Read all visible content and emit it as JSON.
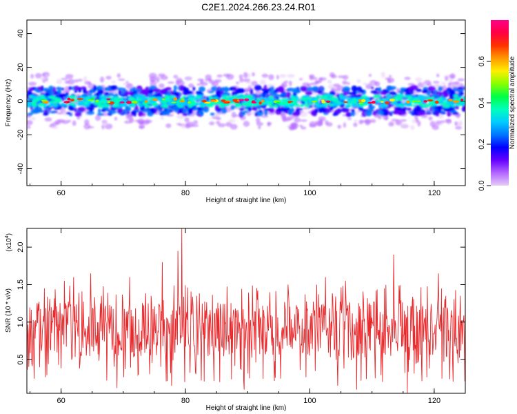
{
  "title": "C2E1.2024.266.23.24.R01",
  "chart_data": [
    {
      "type": "heatmap",
      "xlabel": "Height of straight line (km)",
      "ylabel": "Frequency (Hz)",
      "xlim": [
        54.5,
        125
      ],
      "ylim": [
        -50,
        48
      ],
      "xticks": [
        60,
        80,
        100,
        120
      ],
      "yticks": [
        -40,
        -20,
        0,
        20,
        40
      ],
      "ridge_frequency_hz": 0,
      "ridge_halfwidth_hz": 5,
      "colorbar": {
        "label": "Normalized spectral amplitude",
        "range": [
          0,
          0.8
        ],
        "ticks": [
          0.0,
          0.2,
          0.4,
          0.6
        ],
        "colormap": [
          "#e6ccf7",
          "#b266ff",
          "#6600ff",
          "#0000ff",
          "#0077ff",
          "#00ccff",
          "#00ffbb",
          "#00ff44",
          "#88ff00",
          "#ffee00",
          "#ff9900",
          "#ff3300",
          "#ff0044",
          "#ff0088"
        ]
      }
    },
    {
      "type": "line",
      "xlabel": "Height of straight line (km)",
      "ylabel": "SNR (10 * v/v)",
      "y_multiplier_label": "(x10",
      "y_multiplier_exp": "4",
      "y_multiplier_close": ")",
      "xlim": [
        54.5,
        125
      ],
      "ylim": [
        0.05,
        2.25
      ],
      "xticks": [
        60,
        80,
        100,
        120
      ],
      "yticks": [
        0.5,
        1.0,
        1.5,
        2.0
      ],
      "ytick_labels": [
        "0.5",
        "1.0",
        "1.5",
        "2.0"
      ],
      "color": "#e8282b",
      "anchor_points": [
        {
          "x": 54.5,
          "y": 1.2
        },
        {
          "x": 55.3,
          "y": 0.45
        },
        {
          "x": 57.3,
          "y": 1.45
        },
        {
          "x": 60.5,
          "y": 1.55
        },
        {
          "x": 62.0,
          "y": 1.6
        },
        {
          "x": 64.8,
          "y": 1.65
        },
        {
          "x": 66.5,
          "y": 1.35
        },
        {
          "x": 69.0,
          "y": 0.12
        },
        {
          "x": 71.0,
          "y": 1.6
        },
        {
          "x": 72.8,
          "y": 0.55
        },
        {
          "x": 76.3,
          "y": 1.8
        },
        {
          "x": 77.8,
          "y": 0.15
        },
        {
          "x": 78.8,
          "y": 1.95
        },
        {
          "x": 79.4,
          "y": 2.25
        },
        {
          "x": 79.9,
          "y": 0.2
        },
        {
          "x": 85.5,
          "y": 0.2
        },
        {
          "x": 89.4,
          "y": 0.1
        },
        {
          "x": 96.5,
          "y": 1.5
        },
        {
          "x": 102.5,
          "y": 1.6
        },
        {
          "x": 104.5,
          "y": 0.15
        },
        {
          "x": 105.7,
          "y": 1.55
        },
        {
          "x": 107.5,
          "y": 0.1
        },
        {
          "x": 110.5,
          "y": 0.25
        },
        {
          "x": 112.0,
          "y": 1.45
        },
        {
          "x": 113.5,
          "y": 1.9
        },
        {
          "x": 115.7,
          "y": 0.05
        },
        {
          "x": 117.5,
          "y": 0.5
        },
        {
          "x": 120.7,
          "y": 1.65
        },
        {
          "x": 123.0,
          "y": 0.45
        },
        {
          "x": 124.2,
          "y": 1.35
        },
        {
          "x": 125.0,
          "y": 1.4
        }
      ]
    }
  ]
}
